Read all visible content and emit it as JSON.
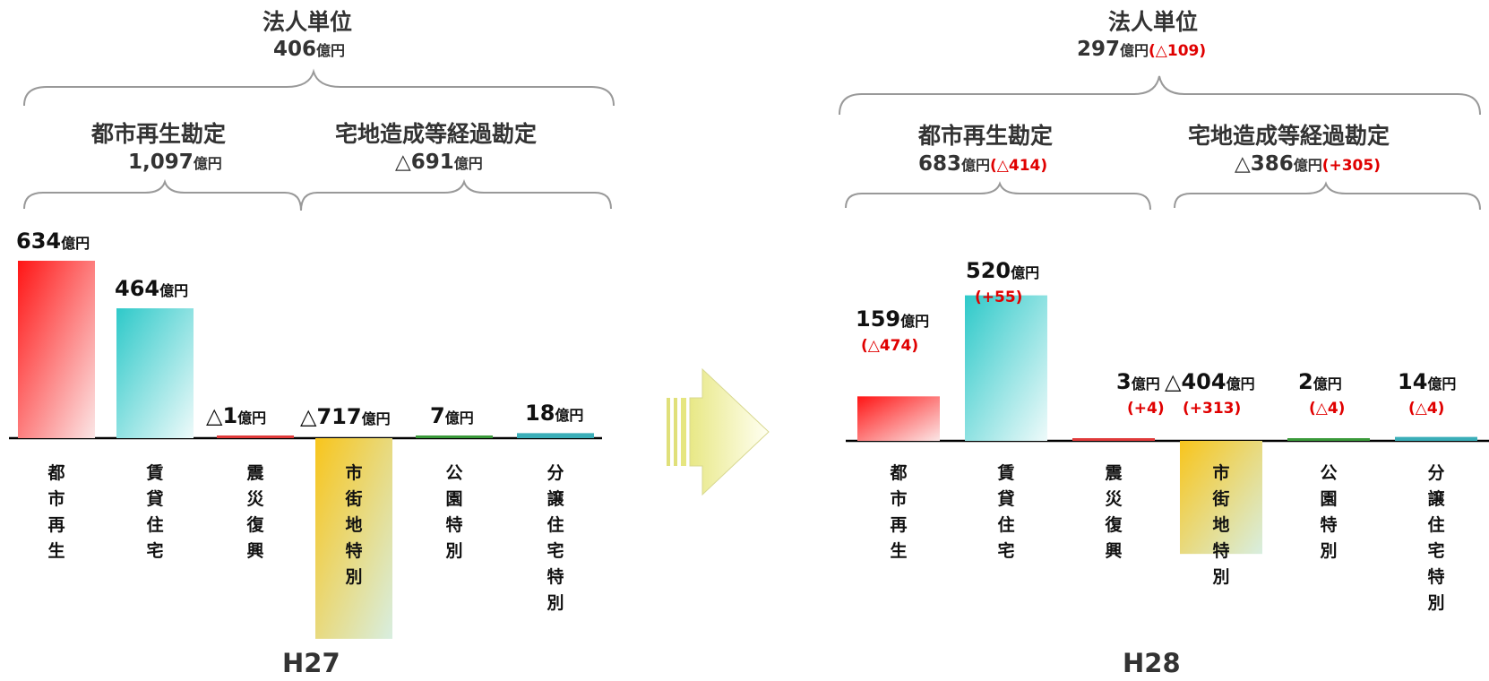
{
  "colors": {
    "red_grad": [
      "#ff1515",
      "#fbe0e0"
    ],
    "cyan_grad": [
      "#2ec9c9",
      "#e6f8f8"
    ],
    "yellow_grad": [
      "#f8c51c",
      "#d5ecdc"
    ],
    "baseline": "#000000",
    "brace": "#999999",
    "arrow": [
      "#ecec8a",
      "#fffff0"
    ],
    "delta_text": "#e00000"
  },
  "icons": [
    "right-arrow-icon"
  ],
  "unit": "億円",
  "left": {
    "year": "H27",
    "header": {
      "title": "法人単位",
      "amount": "406"
    },
    "groups": [
      {
        "title": "都市再生勘定",
        "amount": "1,097"
      },
      {
        "title": "宅地造成等経過勘定",
        "amount": "△691"
      }
    ]
  },
  "right": {
    "year": "H28",
    "header": {
      "title": "法人単位",
      "amount": "297",
      "delta": "(△109)"
    },
    "groups": [
      {
        "title": "都市再生勘定",
        "amount": "683",
        "delta": "(△414)"
      },
      {
        "title": "宅地造成等経過勘定",
        "amount": "△386",
        "delta": "(+305)"
      }
    ]
  },
  "chart_data": [
    {
      "type": "bar",
      "title": "H27",
      "categories": [
        "都市再生",
        "賃貸住宅",
        "震災復興",
        "市街地特別",
        "公園特別",
        "分譲住宅特別"
      ],
      "values": [
        634,
        464,
        -1,
        -717,
        7,
        18
      ],
      "labels": [
        "634",
        "464",
        "△1",
        "△717",
        "7",
        "18"
      ],
      "unit": "億円"
    },
    {
      "type": "bar",
      "title": "H28",
      "categories": [
        "都市再生",
        "賃貸住宅",
        "震災復興",
        "市街地特別",
        "公園特別",
        "分譲住宅特別"
      ],
      "values": [
        159,
        520,
        3,
        -404,
        2,
        14
      ],
      "labels": [
        "159",
        "520",
        "3",
        "△404",
        "2",
        "14"
      ],
      "deltas": [
        "(△474)",
        "(+55)",
        "(+4)",
        "(+313)",
        "(△4)",
        "(△4)"
      ],
      "unit": "億円"
    }
  ]
}
